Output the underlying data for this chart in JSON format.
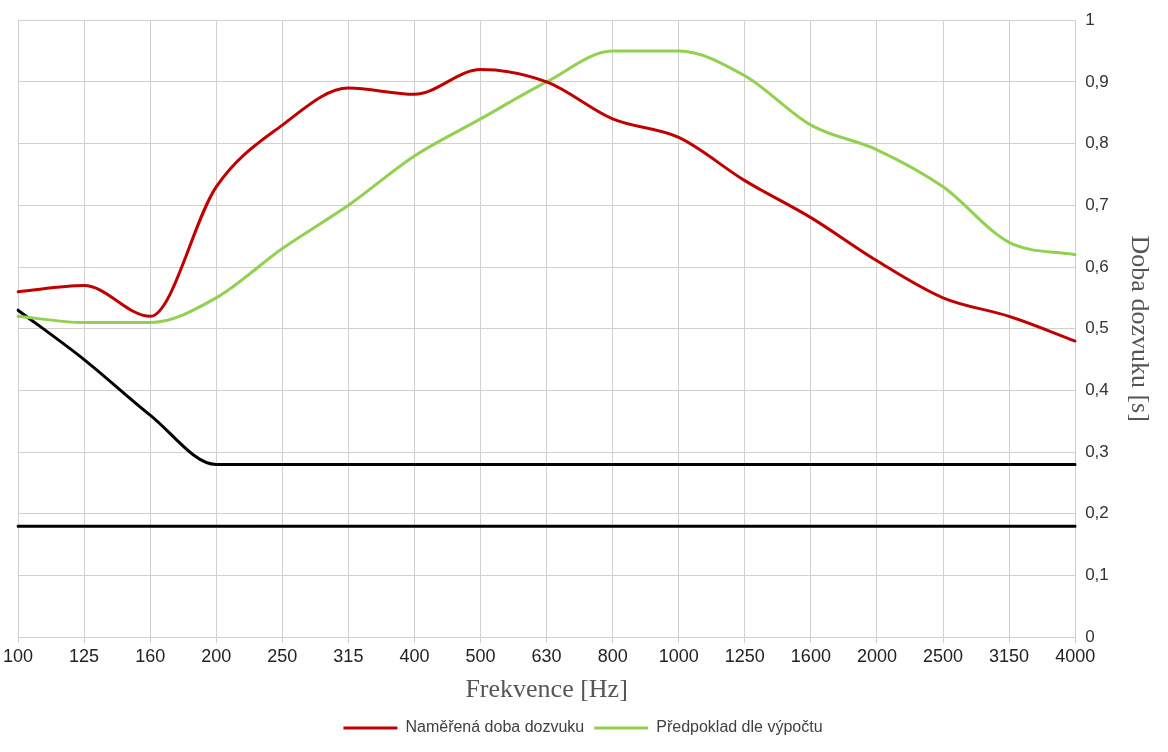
{
  "chart_data": {
    "type": "line",
    "xlabel": "Frekvence [Hz]",
    "ylabel": "Doba dozvuku [s]",
    "categories": [
      "100",
      "125",
      "160",
      "200",
      "250",
      "315",
      "400",
      "500",
      "630",
      "800",
      "1000",
      "1250",
      "1600",
      "2000",
      "2500",
      "3150",
      "4000"
    ],
    "ylim": [
      0,
      1
    ],
    "yticks": [
      {
        "value": 0,
        "label": "0"
      },
      {
        "value": 0.1,
        "label": "0,1"
      },
      {
        "value": 0.2,
        "label": "0,2"
      },
      {
        "value": 0.3,
        "label": "0,3"
      },
      {
        "value": 0.4,
        "label": "0,4"
      },
      {
        "value": 0.5,
        "label": "0,5"
      },
      {
        "value": 0.6,
        "label": "0,6"
      },
      {
        "value": 0.7,
        "label": "0,7"
      },
      {
        "value": 0.8,
        "label": "0,8"
      },
      {
        "value": 0.9,
        "label": "0,9"
      },
      {
        "value": 1,
        "label": "1"
      }
    ],
    "series": [
      {
        "name": "Naměřená doba dozvuku",
        "color": "#c00000",
        "values": [
          0.56,
          0.57,
          0.52,
          0.73,
          0.83,
          0.89,
          0.88,
          0.92,
          0.9,
          0.84,
          0.81,
          0.74,
          0.68,
          0.61,
          0.55,
          0.52,
          0.48
        ]
      },
      {
        "name": "Předpoklad dle výpočtu",
        "color": "#92d050",
        "values": [
          0.52,
          0.51,
          0.51,
          0.55,
          0.63,
          0.7,
          0.78,
          0.84,
          0.9,
          0.95,
          0.95,
          0.91,
          0.83,
          0.79,
          0.73,
          0.64,
          0.62
        ]
      },
      {
        "color": "#000000",
        "values": [
          0.53,
          0.45,
          0.36,
          0.28,
          0.28,
          0.28,
          0.28,
          0.28,
          0.28,
          0.28,
          0.28,
          0.28,
          0.28,
          0.28,
          0.28,
          0.28,
          0.28
        ]
      },
      {
        "color": "#000000",
        "values": [
          0.18,
          0.18,
          0.18,
          0.18,
          0.18,
          0.18,
          0.18,
          0.18,
          0.18,
          0.18,
          0.18,
          0.18,
          0.18,
          0.18,
          0.18,
          0.18,
          0.18
        ]
      }
    ],
    "grid": true,
    "legend": "bottom",
    "marker": "none",
    "line_style": "solid"
  }
}
